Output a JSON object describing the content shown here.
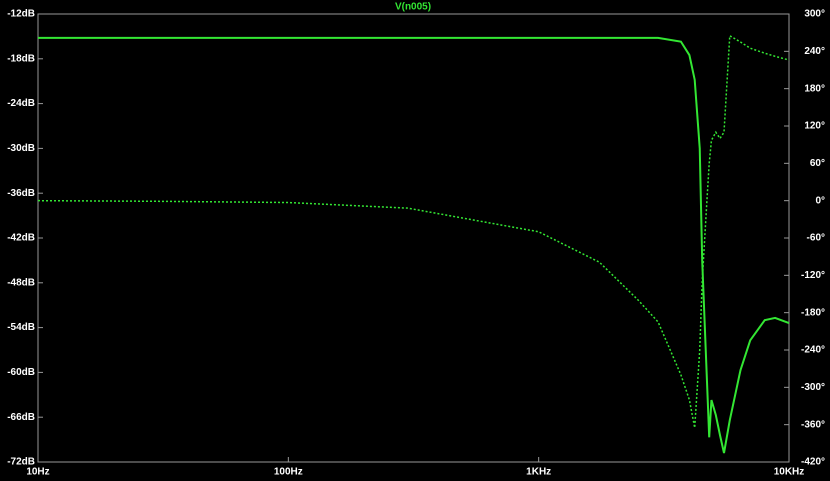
{
  "chart_data": {
    "type": "line",
    "title": "V(n005)",
    "background": "#000000",
    "title_color": "#33e633",
    "xlog": true,
    "x": [
      10,
      30,
      100,
      300,
      1000,
      1750,
      2500,
      3000,
      3700,
      4000,
      4200,
      4400,
      4500,
      4700,
      4800,
      4900,
      5100,
      5300,
      5500,
      5800,
      6400,
      7000,
      8000,
      8800,
      10000
    ],
    "series": [
      {
        "name": "magnitude",
        "color": "#33e633",
        "dashed": false,
        "values": [
          -15.2,
          -15.2,
          -15.2,
          -15.2,
          -15.2,
          -15.2,
          -15.2,
          -15.2,
          -15.7,
          -17.5,
          -20.8,
          -30,
          -45,
          -61,
          -68.7,
          -63.7,
          -65.7,
          -68.4,
          -70.8,
          -66.4,
          -59.7,
          -55.7,
          -53,
          -52.7,
          -53.4
        ]
      },
      {
        "name": "phase",
        "color": "#33e633",
        "dashed": true,
        "axis": "y2",
        "values": [
          0,
          -1,
          -3,
          -12,
          -50,
          -99,
          -160,
          -195,
          -280,
          -320,
          -365,
          -240,
          -130,
          0,
          60,
          97,
          110,
          100,
          110,
          265,
          255,
          245,
          237,
          232,
          226
        ]
      }
    ],
    "xlim": [
      10,
      10000
    ],
    "xticks": [
      {
        "value": 10,
        "label": "10Hz"
      },
      {
        "value": 100,
        "label": "100Hz"
      },
      {
        "value": 1000,
        "label": "1KHz"
      },
      {
        "value": 10000,
        "label": "10KHz"
      }
    ],
    "ylim": [
      -72,
      -12
    ],
    "yticks": [
      {
        "value": -12,
        "label": "-12dB"
      },
      {
        "value": -18,
        "label": "-18dB"
      },
      {
        "value": -24,
        "label": "-24dB"
      },
      {
        "value": -30,
        "label": "-30dB"
      },
      {
        "value": -36,
        "label": "-36dB"
      },
      {
        "value": -42,
        "label": "-42dB"
      },
      {
        "value": -48,
        "label": "-48dB"
      },
      {
        "value": -54,
        "label": "-54dB"
      },
      {
        "value": -60,
        "label": "-60dB"
      },
      {
        "value": -66,
        "label": "-66dB"
      },
      {
        "value": -72,
        "label": "-72dB"
      }
    ],
    "y2lim": [
      -420,
      300
    ],
    "y2ticks": [
      {
        "value": 300,
        "label": "300°"
      },
      {
        "value": 240,
        "label": "240°"
      },
      {
        "value": 180,
        "label": "180°"
      },
      {
        "value": 120,
        "label": "120°"
      },
      {
        "value": 60,
        "label": "60°"
      },
      {
        "value": 0,
        "label": "0°"
      },
      {
        "value": -60,
        "label": "-60°"
      },
      {
        "value": -120,
        "label": "-120°"
      },
      {
        "value": -180,
        "label": "-180°"
      },
      {
        "value": -240,
        "label": "-240°"
      },
      {
        "value": -300,
        "label": "-300°"
      },
      {
        "value": -360,
        "label": "-360°"
      },
      {
        "value": -420,
        "label": "-420°"
      }
    ]
  }
}
